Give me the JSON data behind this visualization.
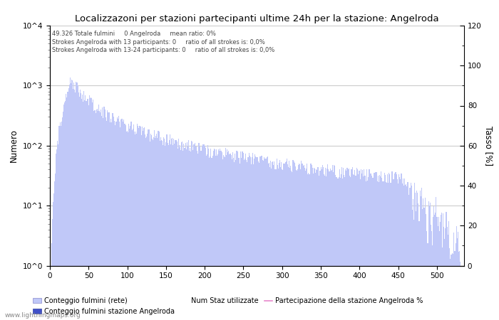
{
  "title": "Localizzazoni per stazioni partecipanti ultime 24h per la stazione: Angelroda",
  "ylabel_left": "Numero",
  "ylabel_right": "Tasso [%]",
  "annotation_line1": "49.326 Totale fulmini     0 Angelroda     mean ratio: 0%",
  "annotation_line2": "Strokes Angelroda with 13 participants: 0     ratio of all strokes is: 0,0%",
  "annotation_line3": "Strokes Angelroda with 13-24 participants: 0     ratio of all strokes is: 0,0%",
  "bar_color_light": "#c0c8f8",
  "bar_color_dark": "#4050c8",
  "line_color": "#e888cc",
  "background_color": "#ffffff",
  "grid_color": "#cccccc",
  "legend_labels": [
    "Conteggio fulmini (rete)",
    "Conteggio fulmini stazione Angelroda",
    "Num Staz utilizzate",
    "Partecipazione della stazione Angelroda %"
  ],
  "watermark": "www.lightningmaps.org",
  "xmax": 530,
  "yticks_right": [
    0,
    20,
    40,
    60,
    80,
    100,
    120
  ]
}
